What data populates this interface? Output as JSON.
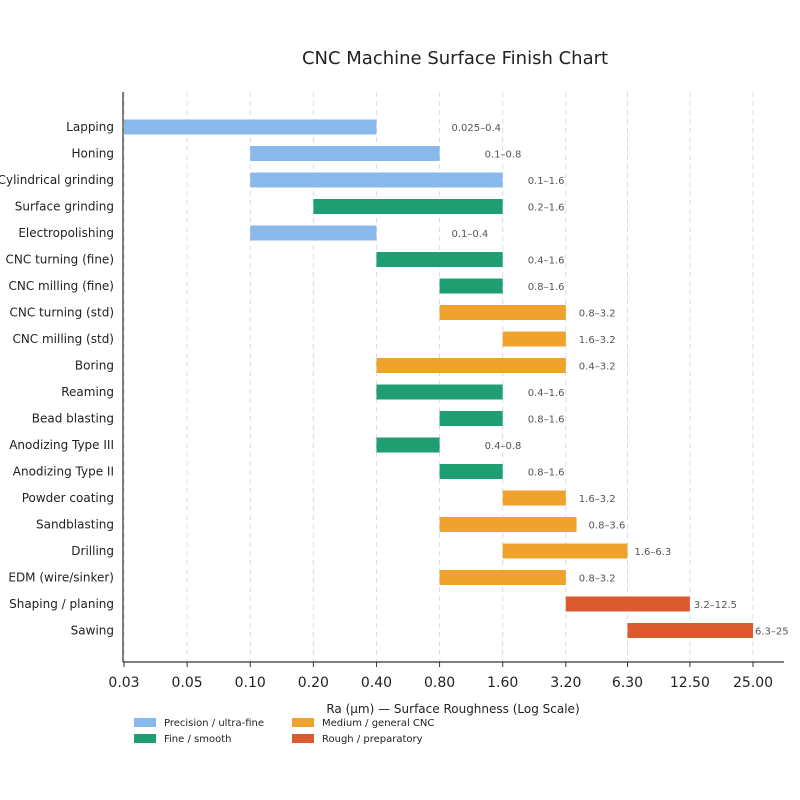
{
  "chart_data": {
    "type": "bar",
    "orientation": "horizontal-range",
    "title": "CNC Machine Surface Finish Chart",
    "xlabel": "Ra (µm) — Surface Roughness (Log Scale)",
    "x_scale": "log",
    "xlim": [
      0.025,
      32
    ],
    "x_ticks": [
      0.025,
      0.05,
      0.1,
      0.2,
      0.4,
      0.8,
      1.6,
      3.2,
      6.3,
      12.5,
      25.0
    ],
    "x_tick_labels": [
      "0.03",
      "0.05",
      "0.10",
      "0.20",
      "0.40",
      "0.80",
      "1.60",
      "3.20",
      "6.30",
      "12.50",
      "25.00"
    ],
    "grid": "vertical",
    "legend_placement": "bottom-left",
    "groups": [
      {
        "key": "precision",
        "name": "Precision / ultra-fine",
        "color": "#89b8ea"
      },
      {
        "key": "fine",
        "name": "Fine / smooth",
        "color": "#1f9e72"
      },
      {
        "key": "medium",
        "name": "Medium / general CNC",
        "color": "#f0a22e"
      },
      {
        "key": "rough",
        "name": "Rough / preparatory",
        "color": "#db5a30"
      }
    ],
    "processes": [
      {
        "name": "Lapping",
        "min": 0.025,
        "max": 0.4,
        "group": "precision",
        "label": "0.025–0.4"
      },
      {
        "name": "Honing",
        "min": 0.1,
        "max": 0.8,
        "group": "precision",
        "label": "0.1–0.8"
      },
      {
        "name": "Cylindrical grinding",
        "min": 0.1,
        "max": 1.6,
        "group": "precision",
        "label": "0.1–1.6"
      },
      {
        "name": "Surface grinding",
        "min": 0.2,
        "max": 1.6,
        "group": "fine",
        "label": "0.2–1.6"
      },
      {
        "name": "Electropolishing",
        "min": 0.1,
        "max": 0.4,
        "group": "precision",
        "label": "0.1–0.4"
      },
      {
        "name": "CNC turning (fine)",
        "min": 0.4,
        "max": 1.6,
        "group": "fine",
        "label": "0.4–1.6"
      },
      {
        "name": "CNC milling (fine)",
        "min": 0.8,
        "max": 1.6,
        "group": "fine",
        "label": "0.8–1.6"
      },
      {
        "name": "CNC turning (std)",
        "min": 0.8,
        "max": 3.2,
        "group": "medium",
        "label": "0.8–3.2"
      },
      {
        "name": "CNC milling (std)",
        "min": 1.6,
        "max": 3.2,
        "group": "medium",
        "label": "1.6–3.2"
      },
      {
        "name": "Boring",
        "min": 0.4,
        "max": 3.2,
        "group": "medium",
        "label": "0.4–3.2"
      },
      {
        "name": "Reaming",
        "min": 0.4,
        "max": 1.6,
        "group": "fine",
        "label": "0.4–1.6"
      },
      {
        "name": "Bead blasting",
        "min": 0.8,
        "max": 1.6,
        "group": "fine",
        "label": "0.8–1.6"
      },
      {
        "name": "Anodizing Type III",
        "min": 0.4,
        "max": 0.8,
        "group": "fine",
        "label": "0.4–0.8"
      },
      {
        "name": "Anodizing Type II",
        "min": 0.8,
        "max": 1.6,
        "group": "fine",
        "label": "0.8–1.6"
      },
      {
        "name": "Powder coating",
        "min": 1.6,
        "max": 3.2,
        "group": "medium",
        "label": "1.6–3.2"
      },
      {
        "name": "Sandblasting",
        "min": 0.8,
        "max": 3.6,
        "group": "medium",
        "label": "0.8–3.6"
      },
      {
        "name": "Drilling",
        "min": 1.6,
        "max": 6.3,
        "group": "medium",
        "label": "1.6–6.3"
      },
      {
        "name": "EDM (wire/sinker)",
        "min": 0.8,
        "max": 3.2,
        "group": "medium",
        "label": "0.8–3.2"
      },
      {
        "name": "Shaping / planing",
        "min": 3.2,
        "max": 12.5,
        "group": "rough",
        "label": "3.2–12.5"
      },
      {
        "name": "Sawing",
        "min": 6.3,
        "max": 25,
        "group": "rough",
        "label": "6.3–25"
      }
    ]
  }
}
